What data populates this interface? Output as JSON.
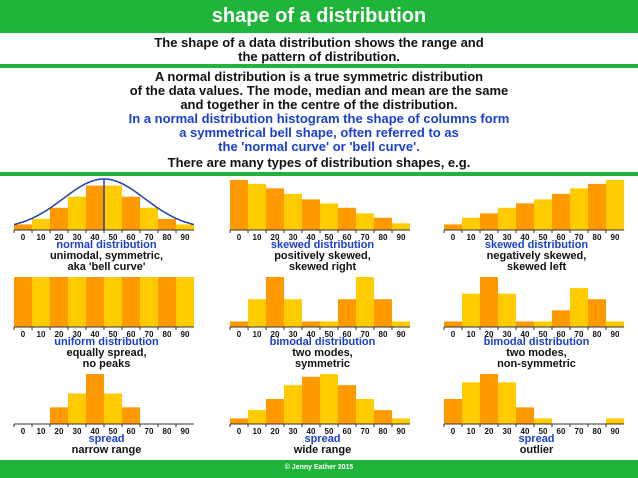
{
  "header": {
    "title": "shape of a distribution"
  },
  "intro": {
    "line1": "The shape of a data distribution shows the range and",
    "line2": "the pattern of distribution."
  },
  "body": {
    "normal_1": "A normal distribution is a true symmetric distribution",
    "normal_2": "of the data values. The mode, median and mean are the same",
    "normal_3": "and together in the centre of the distribution.",
    "blue_1": "In a normal distribution histogram the shape of columns form",
    "blue_2": "a symmetrical bell shape, often referred to as",
    "blue_3": "the 'normal curve' or 'bell curve'.",
    "types": "There are many types of distribution shapes, e.g."
  },
  "footer": {
    "credit": "© Jenny Eather 2015"
  },
  "colors": {
    "green": "#1fb43a",
    "orange": "#ff9900",
    "yellow": "#ffcc00",
    "blue": "#1a3fcf",
    "curve": "#1f3fb0"
  },
  "chart_data": [
    {
      "type": "bar",
      "name": "normal distribution",
      "desc": [
        "unimodal, symmetric,",
        "aka 'bell curve'"
      ],
      "categories": [
        "0",
        "10",
        "20",
        "30",
        "40",
        "50",
        "60",
        "70",
        "80",
        "90"
      ],
      "values": [
        1,
        2,
        4,
        6,
        8,
        8,
        6,
        4,
        2,
        1
      ],
      "overlay": "bell curve"
    },
    {
      "type": "bar",
      "name": "skewed distribution",
      "desc": [
        "positively skewed,",
        "skewed right"
      ],
      "categories": [
        "0",
        "10",
        "20",
        "30",
        "40",
        "50",
        "60",
        "70",
        "80",
        "90"
      ],
      "values": [
        9,
        8.3,
        7.5,
        6.5,
        5.5,
        4.8,
        4,
        3,
        2.2,
        1.2
      ]
    },
    {
      "type": "bar",
      "name": "skewed distribution",
      "desc": [
        "negatively skewed,",
        "skewed left"
      ],
      "categories": [
        "0",
        "10",
        "20",
        "30",
        "40",
        "50",
        "60",
        "70",
        "80",
        "90"
      ],
      "values": [
        1,
        2.2,
        3,
        4,
        4.8,
        5.5,
        6.5,
        7.5,
        8.3,
        9
      ]
    },
    {
      "type": "bar",
      "name": "uniform distribution",
      "desc": [
        "equally spread,",
        "no peaks"
      ],
      "categories": [
        "0",
        "10",
        "20",
        "30",
        "40",
        "50",
        "60",
        "70",
        "80",
        "90"
      ],
      "values": [
        9,
        9,
        9,
        9,
        9,
        9,
        9,
        9,
        9,
        9
      ]
    },
    {
      "type": "bar",
      "name": "bimodal distribution",
      "desc": [
        "two modes,",
        "symmetric"
      ],
      "categories": [
        "0",
        "10",
        "20",
        "30",
        "40",
        "50",
        "60",
        "70",
        "80",
        "90"
      ],
      "values": [
        1,
        5,
        9,
        5,
        1,
        1,
        5,
        9,
        5,
        1
      ]
    },
    {
      "type": "bar",
      "name": "bimodal distribution",
      "desc": [
        "two modes,",
        "non-symmetric"
      ],
      "categories": [
        "0",
        "10",
        "20",
        "30",
        "40",
        "50",
        "60",
        "70",
        "80",
        "90"
      ],
      "values": [
        1,
        6,
        9,
        6,
        1,
        1,
        3,
        7,
        5,
        1
      ]
    },
    {
      "type": "bar",
      "name": "spread",
      "desc": [
        "narrow range"
      ],
      "categories": [
        "0",
        "10",
        "20",
        "30",
        "40",
        "50",
        "60",
        "70",
        "80",
        "90"
      ],
      "values": [
        0,
        0,
        3,
        5.5,
        9,
        5.5,
        3,
        0,
        0,
        0
      ]
    },
    {
      "type": "bar",
      "name": "spread",
      "desc": [
        "wide range"
      ],
      "categories": [
        "0",
        "10",
        "20",
        "30",
        "40",
        "50",
        "60",
        "70",
        "80",
        "90"
      ],
      "values": [
        1,
        2.5,
        4.5,
        7,
        8.5,
        9,
        7,
        4.5,
        2.5,
        1
      ]
    },
    {
      "type": "bar",
      "name": "spread",
      "desc": [
        "outlier"
      ],
      "categories": [
        "0",
        "10",
        "20",
        "30",
        "40",
        "50",
        "60",
        "70",
        "80",
        "90"
      ],
      "values": [
        4.5,
        7.5,
        9,
        7.5,
        3,
        1,
        0,
        0,
        0,
        1
      ]
    }
  ]
}
